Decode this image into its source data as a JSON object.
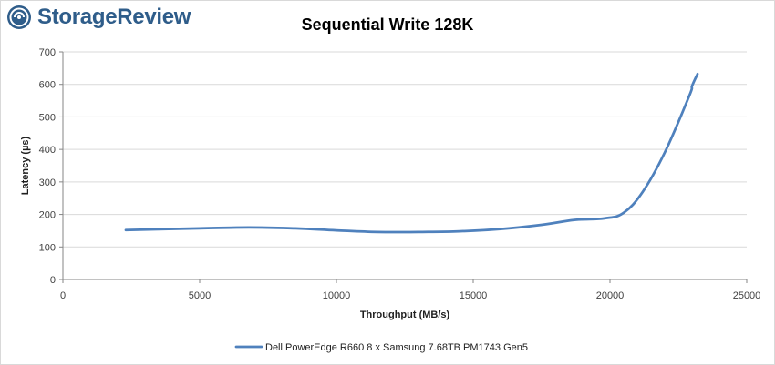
{
  "brand": {
    "name": "StorageReview",
    "logo_icon": "storagereview-logo-icon",
    "color": "#2f5d8a"
  },
  "chart_data": {
    "type": "line",
    "title": "Sequential Write 128K",
    "xlabel": "Throughput (MB/s)",
    "ylabel": "Latency (µs)",
    "xlim": [
      0,
      25000
    ],
    "ylim": [
      0,
      700
    ],
    "x_ticks": [
      0,
      5000,
      10000,
      15000,
      20000,
      25000
    ],
    "y_ticks": [
      0,
      100,
      200,
      300,
      400,
      500,
      600,
      700
    ],
    "grid": "horizontal",
    "legend_position": "bottom",
    "series": [
      {
        "name": "Dell PowerEdge R660 8 x Samsung 7.68TB PM1743 Gen5",
        "color": "#4f81bd",
        "points": [
          [
            2300,
            152
          ],
          [
            5000,
            157
          ],
          [
            6800,
            160
          ],
          [
            8500,
            157
          ],
          [
            10000,
            151
          ],
          [
            11500,
            146
          ],
          [
            13000,
            146
          ],
          [
            14500,
            148
          ],
          [
            16000,
            155
          ],
          [
            17500,
            168
          ],
          [
            18700,
            183
          ],
          [
            19800,
            188
          ],
          [
            20500,
            205
          ],
          [
            21200,
            270
          ],
          [
            22000,
            390
          ],
          [
            22900,
            565
          ],
          [
            23000,
            595
          ],
          [
            23200,
            632
          ]
        ]
      }
    ]
  }
}
